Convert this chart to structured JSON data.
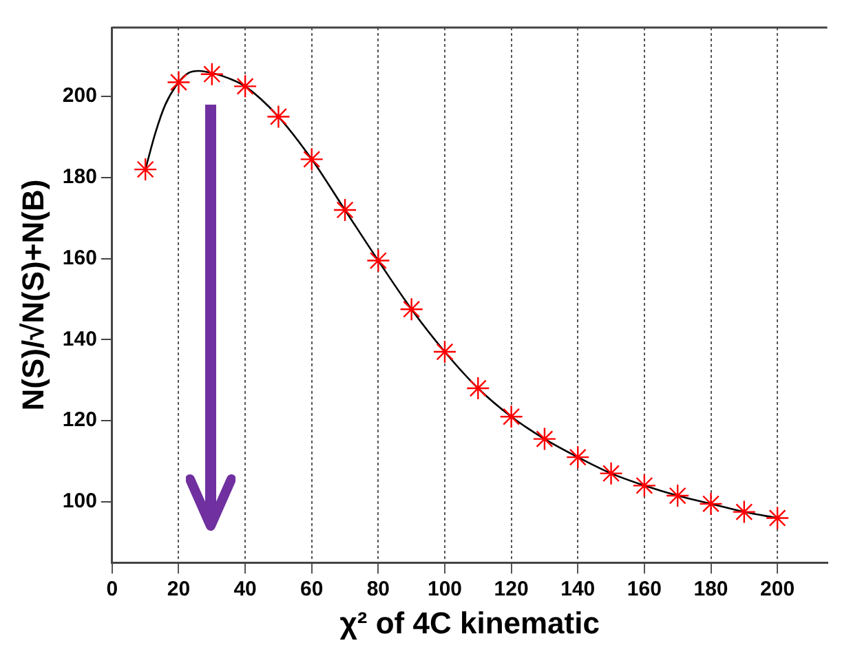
{
  "chart_data": {
    "type": "scatter",
    "xlabel": "χ² of 4C kinematic",
    "ylabel": "N(S)/√N(S)+N(B)",
    "xlim": [
      0,
      215
    ],
    "ylim": [
      85,
      217
    ],
    "xticks": [
      0,
      20,
      40,
      60,
      80,
      100,
      120,
      140,
      160,
      180,
      200
    ],
    "yticks": [
      100,
      120,
      140,
      160,
      180,
      200
    ],
    "grid": "x",
    "legend": false,
    "series": [
      {
        "type": "line",
        "color": "#000000",
        "marker": "none",
        "x": [
          10,
          13,
          16,
          20,
          23,
          26,
          30,
          35,
          40,
          50,
          60,
          70,
          80,
          90,
          100,
          110,
          120,
          130,
          140,
          150,
          160,
          170,
          180,
          190,
          200
        ],
        "values": [
          182,
          191,
          198,
          203.5,
          205.8,
          206.3,
          205.8,
          204.5,
          202.5,
          195,
          184.5,
          172,
          159.5,
          147.5,
          137,
          128,
          121,
          115.5,
          111,
          107,
          104,
          101.5,
          99.5,
          97.5,
          96
        ]
      },
      {
        "type": "scatter",
        "color": "#ff0000",
        "x": [
          10,
          20,
          30,
          40,
          50,
          60,
          70,
          80,
          90,
          100,
          110,
          120,
          130,
          140,
          150,
          160,
          170,
          180,
          190,
          200
        ],
        "values": [
          182,
          203.5,
          205.5,
          202.5,
          195,
          184.5,
          172,
          159.5,
          147.5,
          137,
          128,
          121,
          115.5,
          111,
          107,
          104,
          101.5,
          99.5,
          97.5,
          96
        ]
      }
    ]
  }
}
